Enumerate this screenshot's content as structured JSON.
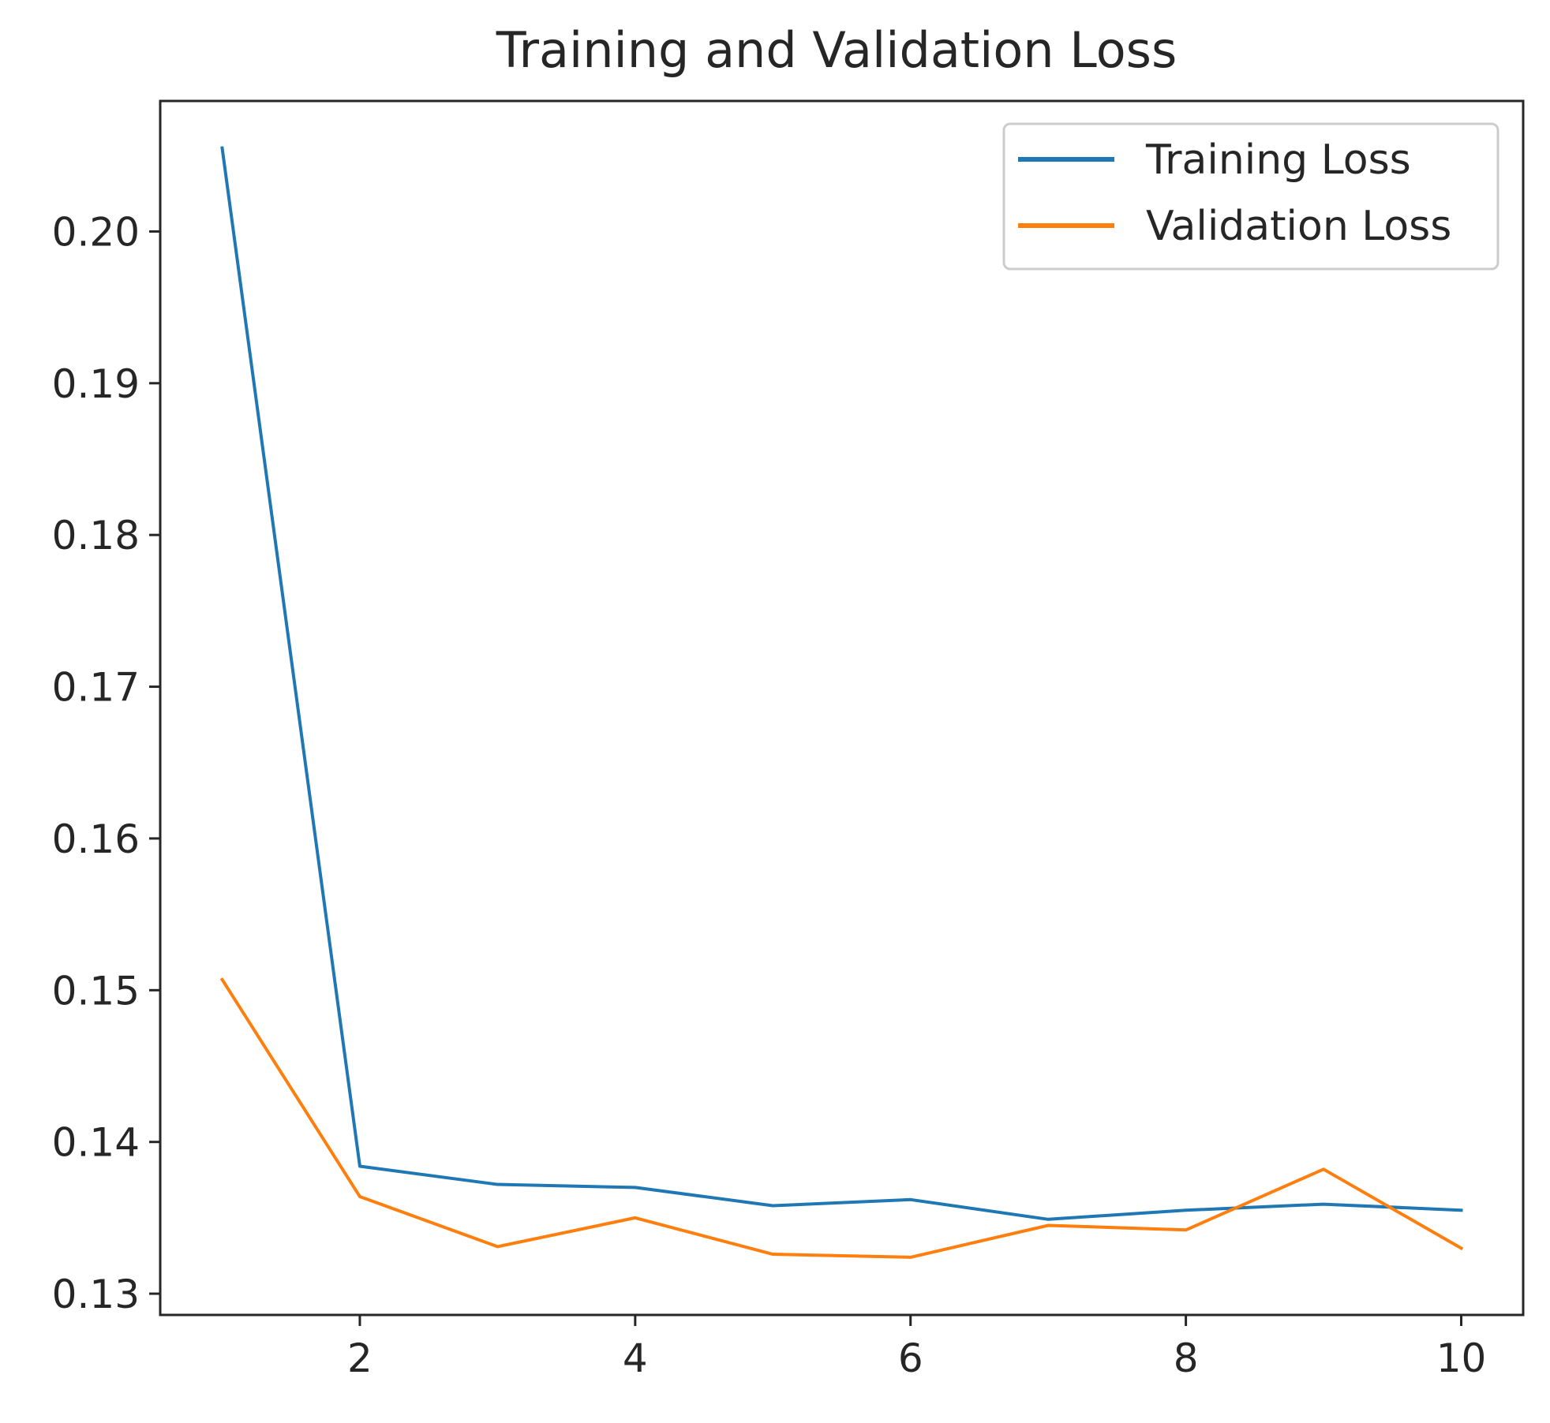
{
  "chart_data": {
    "type": "line",
    "title": "Training and Validation Loss",
    "xlabel": "",
    "ylabel": "",
    "x": [
      1,
      2,
      3,
      4,
      5,
      6,
      7,
      8,
      9,
      10
    ],
    "xlim": [
      0.55,
      10.45
    ],
    "ylim": [
      0.1286,
      0.2086
    ],
    "xticks": [
      2,
      4,
      6,
      8,
      10
    ],
    "xtick_labels": [
      "2",
      "4",
      "6",
      "8",
      "10"
    ],
    "yticks": [
      0.13,
      0.14,
      0.15,
      0.16,
      0.17,
      0.18,
      0.19,
      0.2
    ],
    "ytick_labels": [
      "0.13",
      "0.14",
      "0.15",
      "0.16",
      "0.17",
      "0.18",
      "0.19",
      "0.20"
    ],
    "grid": false,
    "legend_position": "top-right",
    "series": [
      {
        "name": "Training Loss",
        "color": "#1f77b4",
        "values": [
          0.2055,
          0.1384,
          0.1372,
          0.137,
          0.1358,
          0.1362,
          0.1349,
          0.1355,
          0.1359,
          0.1355
        ]
      },
      {
        "name": "Validation Loss",
        "color": "#ff7f0e",
        "values": [
          0.1507,
          0.1364,
          0.1331,
          0.135,
          0.1326,
          0.1324,
          0.1345,
          0.1342,
          0.1382,
          0.133
        ]
      }
    ]
  }
}
